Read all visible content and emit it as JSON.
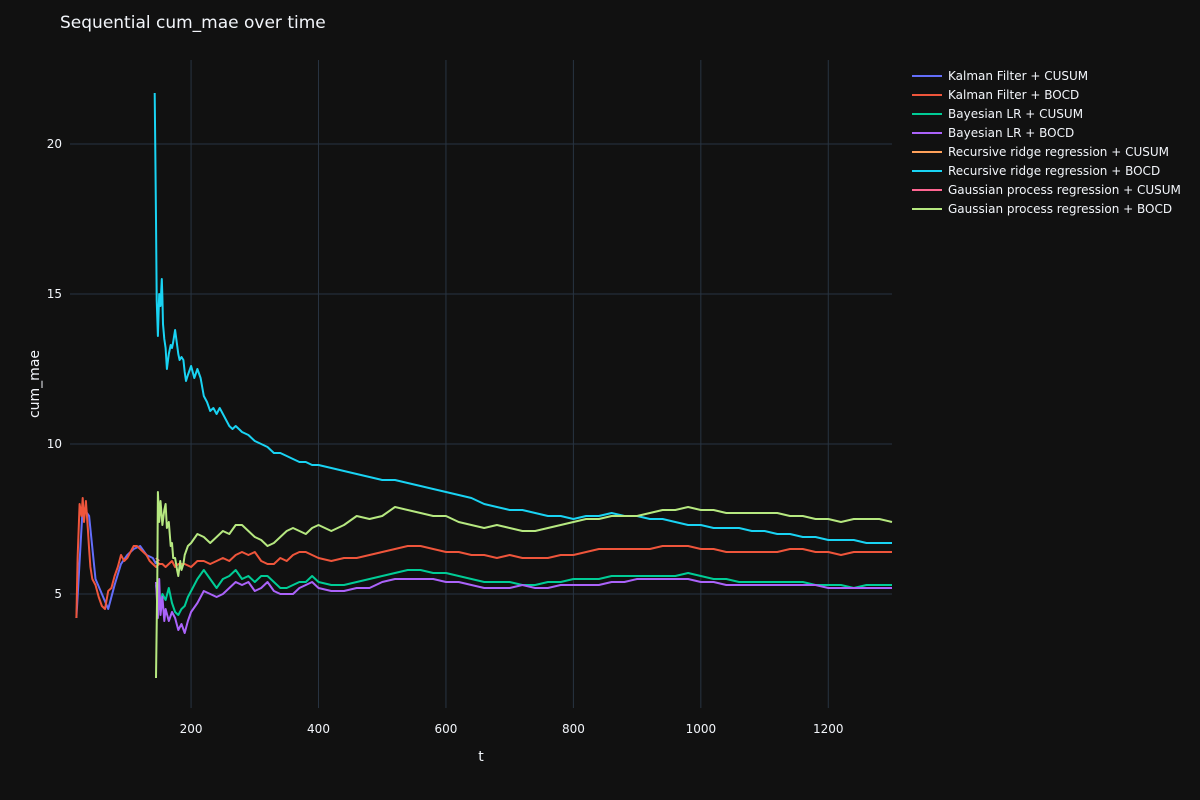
{
  "chart_data": {
    "type": "line",
    "title": "Sequential cum_mae over time",
    "xlabel": "t",
    "ylabel": "cum_mae",
    "xlim": [
      10,
      1300
    ],
    "ylim": [
      1.2,
      22.8
    ],
    "xticks": [
      200,
      400,
      600,
      800,
      1000,
      1200
    ],
    "yticks": [
      5,
      10,
      15,
      20
    ],
    "grid": true,
    "legend_position": "top-right (outside plot)",
    "background": "#111111",
    "series": [
      {
        "name": "Kalman Filter + CUSUM",
        "color": "#636efa",
        "x": [
          20,
          30,
          40,
          50,
          60,
          70,
          80,
          90,
          100,
          110,
          120,
          130,
          140,
          145
        ],
        "y": [
          4.2,
          7.9,
          7.6,
          5.5,
          5.0,
          4.5,
          5.3,
          6.0,
          6.3,
          6.5,
          6.6,
          6.3,
          6.2,
          6.0
        ]
      },
      {
        "name": "Kalman Filter + BOCD",
        "color": "#ef553b",
        "x": [
          20,
          22,
          25,
          28,
          30,
          32,
          35,
          38,
          40,
          42,
          45,
          50,
          55,
          60,
          65,
          70,
          75,
          80,
          85,
          90,
          95,
          100,
          105,
          110,
          115,
          120,
          125,
          130,
          135,
          140,
          145,
          150,
          155,
          160,
          165,
          170,
          175,
          180,
          190,
          200,
          210,
          220,
          230,
          240,
          250,
          260,
          270,
          280,
          290,
          300,
          310,
          320,
          330,
          340,
          350,
          360,
          370,
          380,
          390,
          400,
          420,
          440,
          460,
          480,
          500,
          520,
          540,
          560,
          580,
          600,
          620,
          640,
          660,
          680,
          700,
          720,
          740,
          760,
          780,
          800,
          820,
          840,
          860,
          880,
          900,
          920,
          940,
          960,
          980,
          1000,
          1020,
          1040,
          1060,
          1080,
          1100,
          1120,
          1140,
          1160,
          1180,
          1200,
          1220,
          1240,
          1260,
          1280,
          1300
        ],
        "y": [
          4.2,
          6.2,
          8.0,
          7.6,
          8.2,
          7.4,
          8.1,
          7.2,
          6.5,
          5.9,
          5.5,
          5.3,
          4.9,
          4.6,
          4.5,
          5.1,
          5.2,
          5.6,
          5.9,
          6.3,
          6.1,
          6.2,
          6.4,
          6.6,
          6.6,
          6.5,
          6.4,
          6.3,
          6.1,
          6.0,
          5.9,
          6.0,
          6.0,
          5.9,
          6.0,
          6.1,
          5.9,
          6.0,
          6.0,
          5.9,
          6.1,
          6.1,
          6.0,
          6.1,
          6.2,
          6.1,
          6.3,
          6.4,
          6.3,
          6.4,
          6.1,
          6.0,
          6.0,
          6.2,
          6.1,
          6.3,
          6.4,
          6.4,
          6.3,
          6.2,
          6.1,
          6.2,
          6.2,
          6.3,
          6.4,
          6.5,
          6.6,
          6.6,
          6.5,
          6.4,
          6.4,
          6.3,
          6.3,
          6.2,
          6.3,
          6.2,
          6.2,
          6.2,
          6.3,
          6.3,
          6.4,
          6.5,
          6.5,
          6.5,
          6.5,
          6.5,
          6.6,
          6.6,
          6.6,
          6.5,
          6.5,
          6.4,
          6.4,
          6.4,
          6.4,
          6.4,
          6.5,
          6.5,
          6.4,
          6.4,
          6.3,
          6.4,
          6.4,
          6.4,
          6.4
        ]
      },
      {
        "name": "Bayesian LR + CUSUM",
        "color": "#00cc96",
        "x": [
          145,
          150,
          155,
          160,
          165,
          170,
          175,
          180,
          185,
          190,
          195,
          200,
          210,
          220,
          230,
          240,
          250,
          260,
          270,
          280,
          290,
          300,
          310,
          320,
          330,
          340,
          350,
          360,
          370,
          380,
          390,
          400,
          420,
          440,
          460,
          480,
          500,
          520,
          540,
          560,
          580,
          600,
          620,
          640,
          660,
          680,
          700,
          720,
          740,
          760,
          780,
          800,
          820,
          840,
          860,
          880,
          900,
          920,
          940,
          960,
          980,
          1000,
          1020,
          1040,
          1060,
          1080,
          1100,
          1120,
          1140,
          1160,
          1180,
          1200,
          1220,
          1240,
          1260,
          1280,
          1300
        ],
        "y": [
          5.3,
          4.5,
          5.0,
          4.8,
          5.2,
          4.7,
          4.4,
          4.3,
          4.5,
          4.6,
          4.9,
          5.1,
          5.5,
          5.8,
          5.5,
          5.2,
          5.5,
          5.6,
          5.8,
          5.5,
          5.6,
          5.4,
          5.6,
          5.6,
          5.4,
          5.2,
          5.2,
          5.3,
          5.4,
          5.4,
          5.6,
          5.4,
          5.3,
          5.3,
          5.4,
          5.5,
          5.6,
          5.7,
          5.8,
          5.8,
          5.7,
          5.7,
          5.6,
          5.5,
          5.4,
          5.4,
          5.4,
          5.3,
          5.3,
          5.4,
          5.4,
          5.5,
          5.5,
          5.5,
          5.6,
          5.6,
          5.6,
          5.6,
          5.6,
          5.6,
          5.7,
          5.6,
          5.5,
          5.5,
          5.4,
          5.4,
          5.4,
          5.4,
          5.4,
          5.4,
          5.3,
          5.3,
          5.3,
          5.2,
          5.3,
          5.3,
          5.3
        ]
      },
      {
        "name": "Bayesian LR + BOCD",
        "color": "#ab63fa",
        "x": [
          145,
          148,
          150,
          152,
          155,
          158,
          160,
          165,
          170,
          175,
          180,
          185,
          190,
          195,
          200,
          210,
          220,
          230,
          240,
          250,
          260,
          270,
          280,
          290,
          300,
          310,
          320,
          330,
          340,
          350,
          360,
          370,
          380,
          390,
          400,
          420,
          440,
          460,
          480,
          500,
          520,
          540,
          560,
          580,
          600,
          620,
          640,
          660,
          680,
          700,
          720,
          740,
          760,
          780,
          800,
          820,
          840,
          860,
          880,
          900,
          920,
          940,
          960,
          980,
          1000,
          1020,
          1040,
          1060,
          1080,
          1100,
          1120,
          1140,
          1160,
          1180,
          1200,
          1220,
          1240,
          1260,
          1280,
          1300
        ],
        "y": [
          5.4,
          4.2,
          5.5,
          4.3,
          4.9,
          4.1,
          4.5,
          4.1,
          4.4,
          4.2,
          3.8,
          4.0,
          3.7,
          4.1,
          4.4,
          4.7,
          5.1,
          5.0,
          4.9,
          5.0,
          5.2,
          5.4,
          5.3,
          5.4,
          5.1,
          5.2,
          5.4,
          5.1,
          5.0,
          5.0,
          5.0,
          5.2,
          5.3,
          5.4,
          5.2,
          5.1,
          5.1,
          5.2,
          5.2,
          5.4,
          5.5,
          5.5,
          5.5,
          5.5,
          5.4,
          5.4,
          5.3,
          5.2,
          5.2,
          5.2,
          5.3,
          5.2,
          5.2,
          5.3,
          5.3,
          5.3,
          5.3,
          5.4,
          5.4,
          5.5,
          5.5,
          5.5,
          5.5,
          5.5,
          5.4,
          5.4,
          5.3,
          5.3,
          5.3,
          5.3,
          5.3,
          5.3,
          5.3,
          5.3,
          5.2,
          5.2,
          5.2,
          5.2,
          5.2,
          5.2
        ]
      },
      {
        "name": "Recursive ridge regression + CUSUM",
        "color": "#ffa15a",
        "x": [
          145,
          150
        ],
        "y": [
          6.1,
          6.0
        ]
      },
      {
        "name": "Recursive ridge regression + BOCD",
        "color": "#19d3f3",
        "x": [
          143,
          145,
          146,
          148,
          150,
          152,
          154,
          155,
          156,
          158,
          160,
          162,
          165,
          168,
          170,
          172,
          175,
          178,
          180,
          182,
          185,
          188,
          190,
          192,
          195,
          200,
          205,
          210,
          215,
          220,
          225,
          230,
          235,
          240,
          245,
          250,
          255,
          260,
          265,
          270,
          275,
          280,
          290,
          300,
          310,
          320,
          330,
          340,
          350,
          360,
          370,
          380,
          390,
          400,
          420,
          440,
          460,
          480,
          500,
          520,
          540,
          560,
          580,
          600,
          620,
          640,
          660,
          680,
          700,
          720,
          740,
          760,
          780,
          800,
          820,
          840,
          860,
          880,
          900,
          920,
          940,
          960,
          980,
          1000,
          1020,
          1040,
          1060,
          1080,
          1100,
          1120,
          1140,
          1160,
          1180,
          1200,
          1220,
          1240,
          1260,
          1280,
          1300
        ],
        "y": [
          21.7,
          17.5,
          14.8,
          13.6,
          15.0,
          14.6,
          15.5,
          14.9,
          14.0,
          13.5,
          13.2,
          12.5,
          13.0,
          13.3,
          13.2,
          13.4,
          13.8,
          13.3,
          13.0,
          12.8,
          12.9,
          12.8,
          12.4,
          12.1,
          12.3,
          12.6,
          12.2,
          12.5,
          12.2,
          11.6,
          11.4,
          11.1,
          11.2,
          11.0,
          11.2,
          11.0,
          10.8,
          10.6,
          10.5,
          10.6,
          10.5,
          10.4,
          10.3,
          10.1,
          10.0,
          9.9,
          9.7,
          9.7,
          9.6,
          9.5,
          9.4,
          9.4,
          9.3,
          9.3,
          9.2,
          9.1,
          9.0,
          8.9,
          8.8,
          8.8,
          8.7,
          8.6,
          8.5,
          8.4,
          8.3,
          8.2,
          8.0,
          7.9,
          7.8,
          7.8,
          7.7,
          7.6,
          7.6,
          7.5,
          7.6,
          7.6,
          7.7,
          7.6,
          7.6,
          7.5,
          7.5,
          7.4,
          7.3,
          7.3,
          7.2,
          7.2,
          7.2,
          7.1,
          7.1,
          7.0,
          7.0,
          6.9,
          6.9,
          6.8,
          6.8,
          6.8,
          6.7,
          6.7,
          6.7
        ]
      },
      {
        "name": "Gaussian process regression + CUSUM",
        "color": "#ff6692",
        "x": [
          145,
          150
        ],
        "y": [
          6.2,
          6.1
        ]
      },
      {
        "name": "Gaussian process regression + BOCD",
        "color": "#b6e880",
        "x": [
          145,
          147,
          148,
          150,
          152,
          155,
          158,
          160,
          162,
          165,
          168,
          170,
          172,
          175,
          178,
          180,
          183,
          185,
          188,
          190,
          195,
          200,
          210,
          220,
          230,
          240,
          250,
          260,
          270,
          280,
          290,
          300,
          310,
          320,
          330,
          340,
          350,
          360,
          370,
          380,
          390,
          400,
          420,
          440,
          460,
          480,
          500,
          520,
          540,
          560,
          580,
          600,
          620,
          640,
          660,
          680,
          700,
          720,
          740,
          760,
          780,
          800,
          820,
          840,
          860,
          880,
          900,
          920,
          940,
          960,
          980,
          1000,
          1020,
          1040,
          1060,
          1080,
          1100,
          1120,
          1140,
          1160,
          1180,
          1200,
          1220,
          1240,
          1260,
          1280,
          1300
        ],
        "y": [
          2.2,
          5.5,
          8.4,
          7.4,
          8.1,
          7.3,
          7.8,
          8.0,
          7.2,
          7.4,
          6.6,
          6.7,
          6.2,
          6.2,
          5.8,
          5.6,
          6.1,
          5.8,
          6.0,
          6.3,
          6.6,
          6.7,
          7.0,
          6.9,
          6.7,
          6.9,
          7.1,
          7.0,
          7.3,
          7.3,
          7.1,
          6.9,
          6.8,
          6.6,
          6.7,
          6.9,
          7.1,
          7.2,
          7.1,
          7.0,
          7.2,
          7.3,
          7.1,
          7.3,
          7.6,
          7.5,
          7.6,
          7.9,
          7.8,
          7.7,
          7.6,
          7.6,
          7.4,
          7.3,
          7.2,
          7.3,
          7.2,
          7.1,
          7.1,
          7.2,
          7.3,
          7.4,
          7.5,
          7.5,
          7.6,
          7.6,
          7.6,
          7.7,
          7.8,
          7.8,
          7.9,
          7.8,
          7.8,
          7.7,
          7.7,
          7.7,
          7.7,
          7.7,
          7.6,
          7.6,
          7.5,
          7.5,
          7.4,
          7.5,
          7.5,
          7.5,
          7.4
        ]
      }
    ]
  }
}
